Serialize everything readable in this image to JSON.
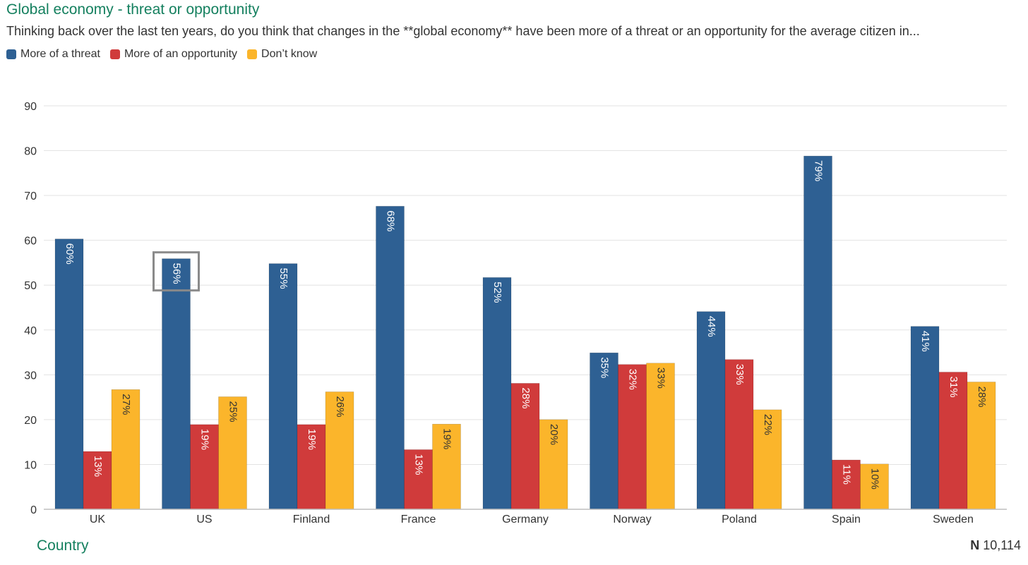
{
  "header": {
    "title": "Global economy - threat or opportunity",
    "subtitle": "Thinking back over the last ten years, do you think that changes in the **global economy** have been more of a threat or an opportunity for the average citizen in..."
  },
  "legend": [
    {
      "label": "More of a threat",
      "color": "#2e6093"
    },
    {
      "label": "More of an opportunity",
      "color": "#d03b3b"
    },
    {
      "label": "Don’t know",
      "color": "#fbb52b"
    }
  ],
  "footer": {
    "x_title": "Country",
    "n_prefix": "N",
    "n_value": "10,114"
  },
  "chart_data": {
    "type": "bar",
    "title": "Global economy - threat or opportunity",
    "xlabel": "Country",
    "ylabel": "",
    "ylim": [
      0,
      90
    ],
    "yticks": [
      0,
      10,
      20,
      30,
      40,
      50,
      60,
      70,
      80,
      90
    ],
    "grid": true,
    "legend_position": "top-left",
    "categories": [
      "UK",
      "US",
      "Finland",
      "France",
      "Germany",
      "Norway",
      "Poland",
      "Spain",
      "Sweden"
    ],
    "series": [
      {
        "name": "More of a threat",
        "color": "#2e6093",
        "values": [
          60.3,
          55.9,
          54.8,
          67.6,
          51.7,
          34.9,
          44.1,
          78.8,
          40.8
        ],
        "labels": [
          "60%",
          "56%",
          "55%",
          "68%",
          "52%",
          "35%",
          "44%",
          "79%",
          "41%"
        ]
      },
      {
        "name": "More of an opportunity",
        "color": "#d03b3b",
        "values": [
          12.9,
          18.9,
          18.9,
          13.3,
          28.1,
          32.3,
          33.4,
          11.0,
          30.6
        ],
        "labels": [
          "13%",
          "19%",
          "19%",
          "13%",
          "28%",
          "32%",
          "33%",
          "11%",
          "31%"
        ]
      },
      {
        "name": "Don’t know",
        "color": "#fbb52b",
        "values": [
          26.7,
          25.1,
          26.2,
          19.0,
          20.0,
          32.6,
          22.2,
          10.1,
          28.4
        ],
        "labels": [
          "27%",
          "25%",
          "26%",
          "19%",
          "20%",
          "33%",
          "22%",
          "10%",
          "28%"
        ]
      }
    ],
    "highlighted": {
      "series": 0,
      "category": 1
    }
  }
}
